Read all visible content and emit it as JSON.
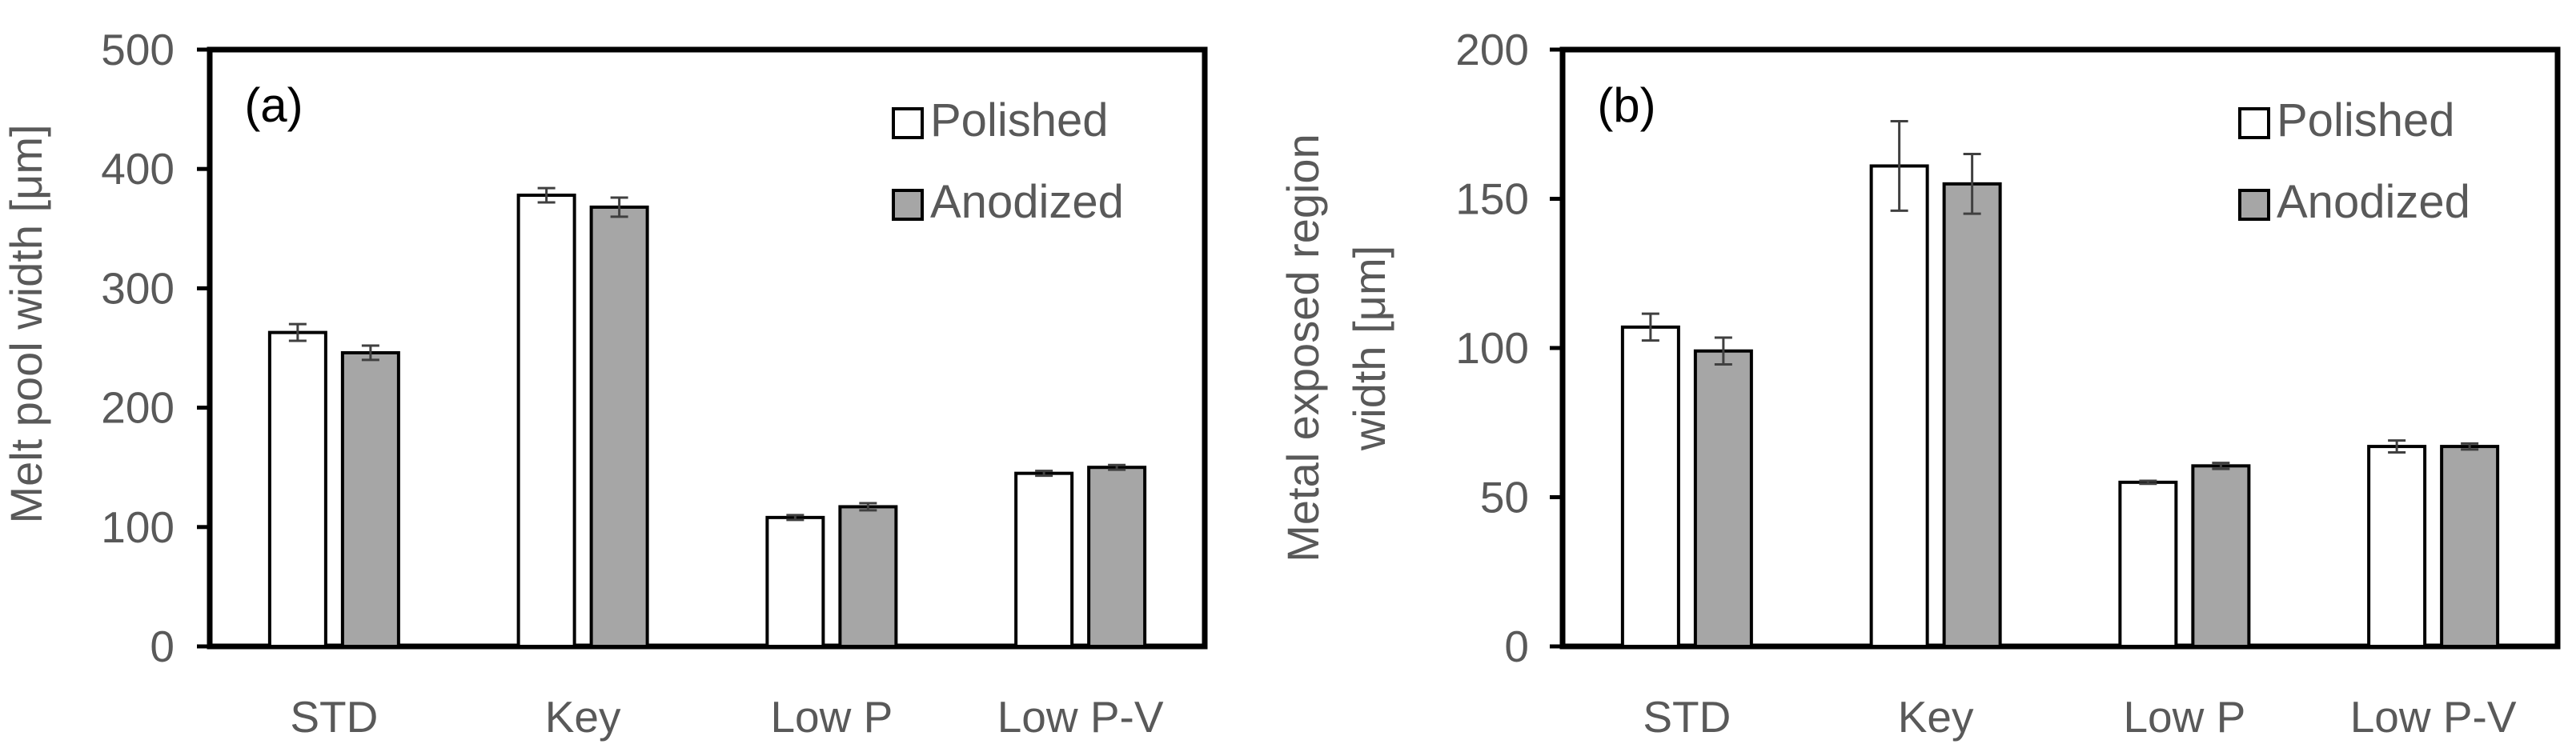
{
  "figure": {
    "colors": {
      "polished": "#ffffff",
      "anodized": "#a6a6a6",
      "text": "#595959",
      "frame": "#000000",
      "errorbar": "#404040"
    }
  },
  "chart_data": [
    {
      "type": "bar",
      "panel_label": "(a)",
      "title": "",
      "xlabel": "",
      "ylabel": "Melt pool width [μm]",
      "categories": [
        "STD",
        "Key",
        "Low P",
        "Low P-V"
      ],
      "ylim": [
        0,
        500
      ],
      "yticks": [
        0,
        100,
        200,
        300,
        400,
        500
      ],
      "ytick_labels": [
        "0",
        "100",
        "200",
        "300",
        "400",
        "500"
      ],
      "grid": false,
      "legend_position": "top-right",
      "series": [
        {
          "name": "Polished",
          "values": [
            263,
            378,
            108,
            145
          ],
          "errors": [
            7,
            6,
            2,
            2
          ]
        },
        {
          "name": "Anodized",
          "values": [
            246,
            368,
            117,
            150
          ],
          "errors": [
            6,
            8,
            3,
            2
          ]
        }
      ]
    },
    {
      "type": "bar",
      "panel_label": "(b)",
      "title": "",
      "xlabel": "",
      "ylabel": "Metal exposed region width [μm]",
      "ylabel_lines": [
        "Metal exposed region",
        "width [μm]"
      ],
      "categories": [
        "STD",
        "Key",
        "Low P",
        "Low P-V"
      ],
      "ylim": [
        0,
        200
      ],
      "yticks": [
        0,
        50,
        100,
        150,
        200
      ],
      "ytick_labels": [
        "0",
        "50",
        "100",
        "150",
        "200"
      ],
      "grid": false,
      "legend_position": "top-right",
      "series": [
        {
          "name": "Polished",
          "values": [
            107,
            161,
            55,
            67
          ],
          "errors": [
            4.5,
            15,
            0.5,
            2
          ]
        },
        {
          "name": "Anodized",
          "values": [
            99,
            155,
            60.5,
            67
          ],
          "errors": [
            4.5,
            10,
            1,
            1
          ]
        }
      ]
    }
  ]
}
